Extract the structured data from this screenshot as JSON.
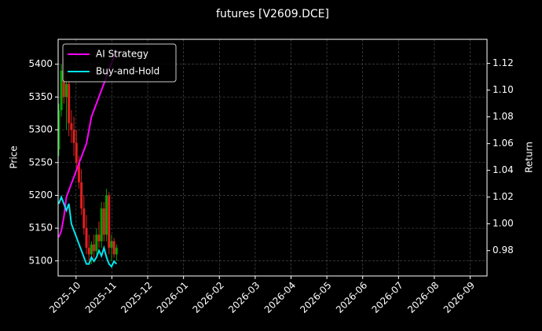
{
  "chart_data": {
    "type": "candlestick",
    "title": "futures [V2609.DCE]",
    "ylabel": "Price",
    "y2label": "Return",
    "x": [
      -0.48,
      -0.41,
      -0.34,
      -0.27,
      -0.2,
      -0.13,
      -0.06,
      0.01,
      0.08,
      0.15,
      0.22,
      0.29,
      0.36,
      0.43,
      0.5,
      0.57,
      0.64,
      0.71,
      0.78,
      0.85,
      0.92,
      0.99,
      1.06,
      1.13
    ],
    "xlim": [
      -0.5,
      11.47
    ],
    "xticks": [
      {
        "value": 0,
        "label": "2025-10"
      },
      {
        "value": 1,
        "label": "2025-11"
      },
      {
        "value": 2,
        "label": "2025-12"
      },
      {
        "value": 3,
        "label": "2026-01"
      },
      {
        "value": 4,
        "label": "2026-02"
      },
      {
        "value": 5,
        "label": "2026-03"
      },
      {
        "value": 6,
        "label": "2026-04"
      },
      {
        "value": 7,
        "label": "2026-05"
      },
      {
        "value": 8,
        "label": "2026-06"
      },
      {
        "value": 9,
        "label": "2026-07"
      },
      {
        "value": 10,
        "label": "2026-08"
      },
      {
        "value": 11,
        "label": "2026-09"
      }
    ],
    "ylim": [
      5077,
      5438
    ],
    "yticks": [
      5100,
      5150,
      5200,
      5250,
      5300,
      5350,
      5400
    ],
    "y2lim": [
      0.961,
      1.138
    ],
    "y2ticks": [
      0.98,
      {
        "value": 1,
        "label": "1.00"
      },
      1.02,
      1.04,
      1.06,
      1.08,
      {
        "value": 1.1,
        "label": "1.10"
      },
      1.12
    ],
    "grid": true,
    "legend": "upper left",
    "up_color": "#00a000",
    "down_color": "#e02020",
    "candles": {
      "open": [
        5270,
        5330,
        5390,
        5350,
        5370,
        5310,
        5300,
        5280,
        5250,
        5220,
        5180,
        5150,
        5120,
        5110,
        5125,
        5115,
        5140,
        5130,
        5180,
        5140,
        5200,
        5120,
        5130,
        5110
      ],
      "high": [
        5340,
        5400,
        5410,
        5380,
        5375,
        5330,
        5320,
        5300,
        5260,
        5240,
        5200,
        5170,
        5140,
        5130,
        5140,
        5150,
        5160,
        5190,
        5190,
        5210,
        5205,
        5140,
        5135,
        5125
      ],
      "low": [
        5260,
        5320,
        5340,
        5300,
        5290,
        5280,
        5260,
        5240,
        5210,
        5170,
        5140,
        5110,
        5100,
        5095,
        5105,
        5110,
        5120,
        5120,
        5130,
        5130,
        5110,
        5100,
        5105,
        5100
      ],
      "close": [
        5330,
        5390,
        5350,
        5370,
        5310,
        5300,
        5280,
        5250,
        5220,
        5180,
        5150,
        5120,
        5110,
        5125,
        5115,
        5140,
        5130,
        5180,
        5140,
        5200,
        5120,
        5130,
        5110,
        5120
      ]
    },
    "series": [
      {
        "name": "AI Strategy",
        "color": "#ff00ff",
        "axis": "y2",
        "values": [
          0.99,
          0.995,
          1.005,
          1.02,
          1.025,
          1.03,
          1.035,
          1.04,
          1.045,
          1.05,
          1.055,
          1.06,
          1.07,
          1.08,
          1.085,
          1.09,
          1.095,
          1.1,
          1.105,
          1.11,
          1.115,
          1.12,
          1.125,
          1.13
        ]
      },
      {
        "name": "Buy-and-Hold",
        "color": "#00e5ee",
        "axis": "y2",
        "values": [
          1.015,
          1.02,
          1.015,
          1.01,
          1.015,
          1.0,
          0.995,
          0.99,
          0.985,
          0.98,
          0.975,
          0.97,
          0.97,
          0.975,
          0.972,
          0.975,
          0.98,
          0.976,
          0.982,
          0.975,
          0.97,
          0.968,
          0.972,
          0.97
        ]
      }
    ]
  }
}
